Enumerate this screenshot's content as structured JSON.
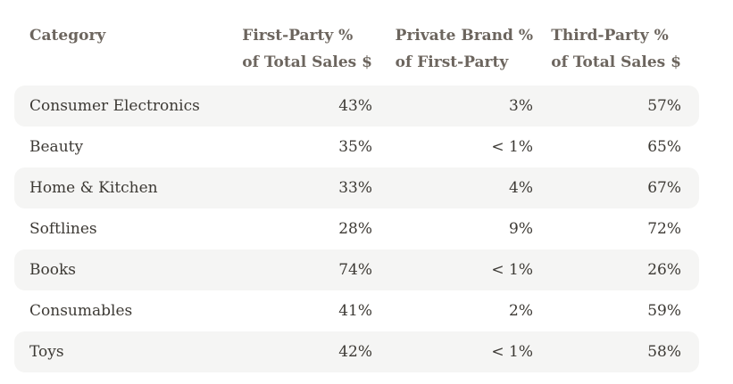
{
  "header": {
    "col1": {
      "line1": "Category"
    },
    "col2": {
      "line1": "First-Party %",
      "line2": "of Total Sales $"
    },
    "col3": {
      "line1": "Private Brand %",
      "line2": "of First-Party"
    },
    "col4": {
      "line1": "Third-Party %",
      "line2": "of Total Sales $"
    }
  },
  "chart_data": {
    "type": "table",
    "title": "",
    "columns": [
      "Category",
      "First-Party % of Total Sales $",
      "Private Brand % of First-Party",
      "Third-Party % of Total Sales $"
    ],
    "rows": [
      [
        "Consumer Electronics",
        "43%",
        "3%",
        "57%"
      ],
      [
        "Beauty",
        "35%",
        "< 1%",
        "65%"
      ],
      [
        "Home & Kitchen",
        "33%",
        "4%",
        "67%"
      ],
      [
        "Softlines",
        "28%",
        "9%",
        "72%"
      ],
      [
        "Books",
        "74%",
        "< 1%",
        "26%"
      ],
      [
        "Consumables",
        "41%",
        "2%",
        "59%"
      ],
      [
        "Toys",
        "42%",
        "< 1%",
        "58%"
      ]
    ]
  },
  "colors": {
    "row_background": "#f5f5f4",
    "header_text": "#6c655e",
    "body_text": "#3c3934",
    "page_background": "#ffffff"
  }
}
